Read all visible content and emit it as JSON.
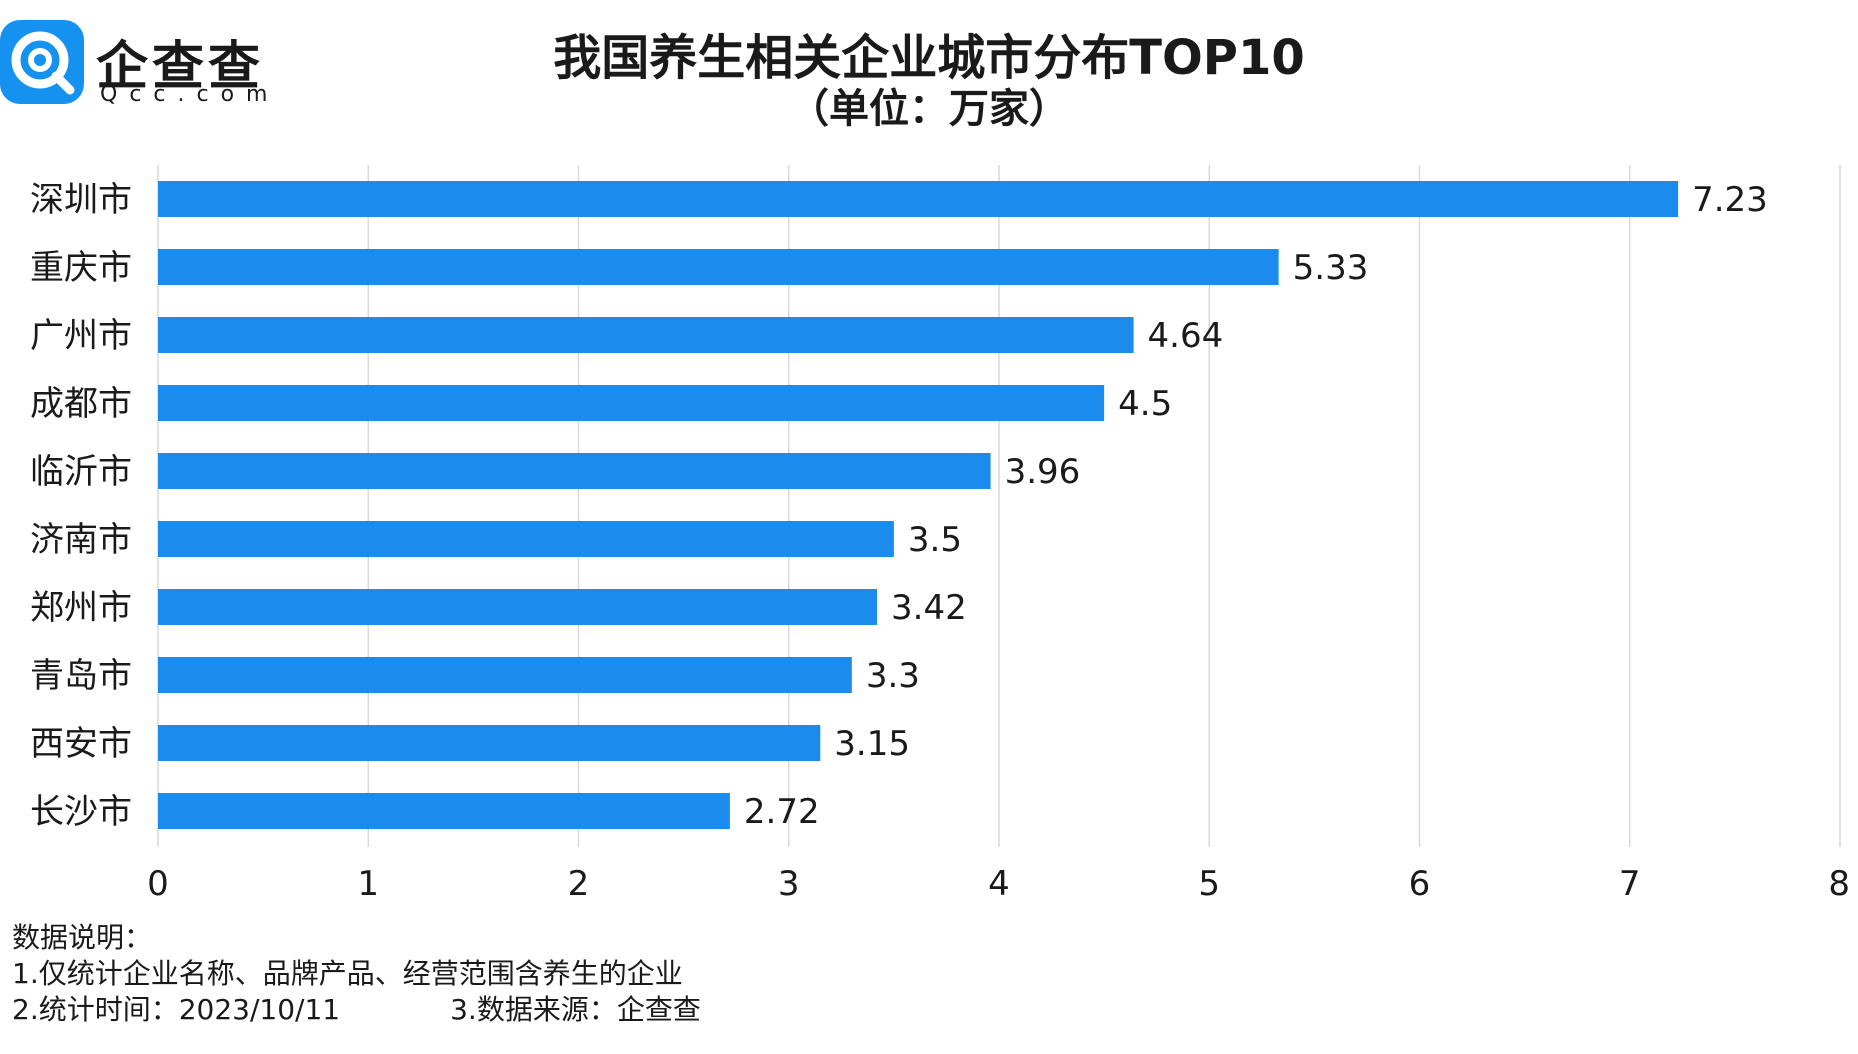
{
  "logo": {
    "brand": "企查查",
    "sub": "Qcc.com",
    "color": "#1592f0"
  },
  "notes": {
    "heading": "数据说明：",
    "line1": "1.仅统计企业名称、品牌产品、经营范围含养生的企业",
    "line2": "2.统计时间：2023/10/11",
    "line3": "3.数据来源：企查查"
  },
  "chart_data": {
    "type": "bar",
    "orientation": "horizontal",
    "title": "我国养生相关企业城市分布TOP10",
    "subtitle": "（单位：万家）",
    "categories": [
      "深圳市",
      "重庆市",
      "广州市",
      "成都市",
      "临沂市",
      "济南市",
      "郑州市",
      "青岛市",
      "西安市",
      "长沙市"
    ],
    "values": [
      7.23,
      5.33,
      4.64,
      4.5,
      3.96,
      3.5,
      3.42,
      3.3,
      3.15,
      2.72
    ],
    "value_labels": [
      "7.23",
      "5.33",
      "4.64",
      "4.5",
      "3.96",
      "3.5",
      "3.42",
      "3.3",
      "3.15",
      "2.72"
    ],
    "xlim": [
      0,
      8
    ],
    "xticks": [
      0,
      1,
      2,
      3,
      4,
      5,
      6,
      7,
      8
    ],
    "grid": true,
    "bar_color": "#1b8ced",
    "grid_color": "#d9d9d9"
  }
}
